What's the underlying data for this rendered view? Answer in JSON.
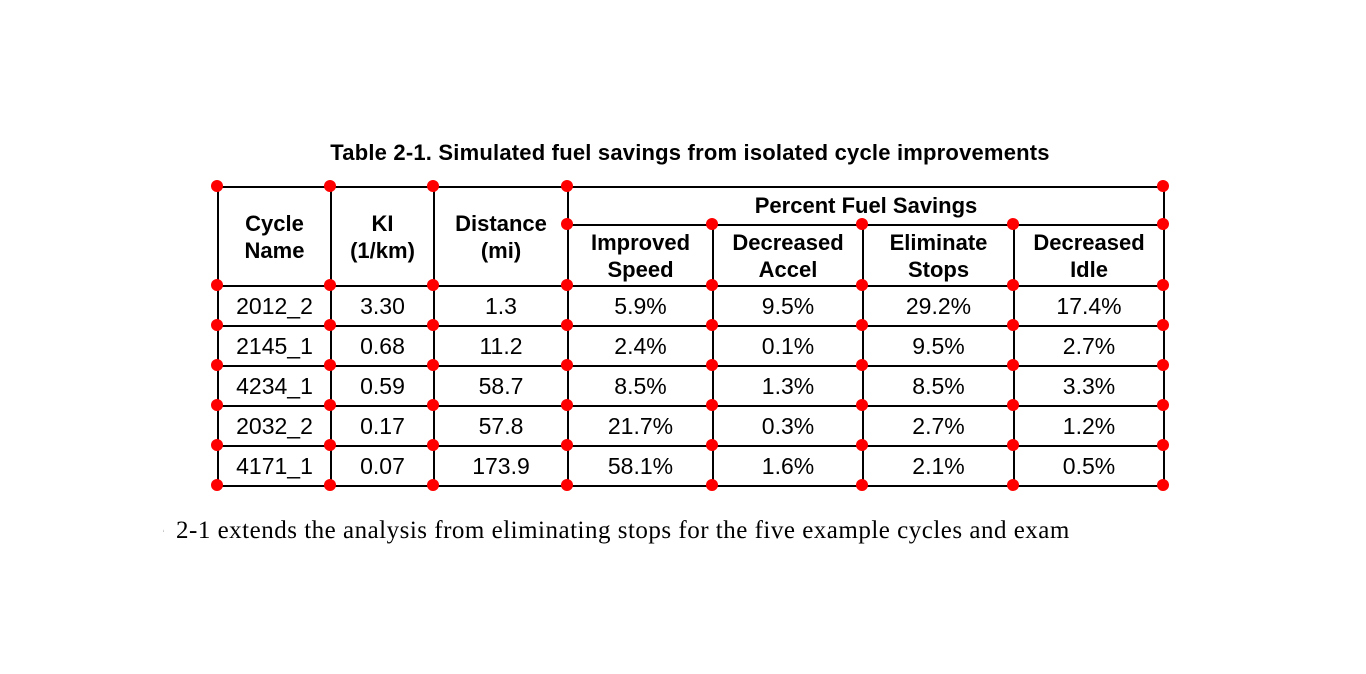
{
  "caption": "Table 2-1. Simulated fuel savings from isolated cycle improvements",
  "table": {
    "col_headers": [
      {
        "line1": "Cycle",
        "line2": "Name"
      },
      {
        "line1": "KI",
        "line2": "(1/km)"
      },
      {
        "line1": "Distance",
        "line2": "(mi)"
      }
    ],
    "group_header": "Percent Fuel Savings",
    "sub_headers": [
      {
        "line1": "Improved",
        "line2": "Speed"
      },
      {
        "line1": "Decreased",
        "line2": "Accel"
      },
      {
        "line1": "Eliminate",
        "line2": "Stops"
      },
      {
        "line1": "Decreased",
        "line2": "Idle"
      }
    ],
    "rows": [
      {
        "cycle": "2012_2",
        "ki": "3.30",
        "distance": "1.3",
        "improved_speed": "5.9%",
        "decreased_accel": "9.5%",
        "eliminate_stops": "29.2%",
        "decreased_idle": "17.4%"
      },
      {
        "cycle": "2145_1",
        "ki": "0.68",
        "distance": "11.2",
        "improved_speed": "2.4%",
        "decreased_accel": "0.1%",
        "eliminate_stops": "9.5%",
        "decreased_idle": "2.7%"
      },
      {
        "cycle": "4234_1",
        "ki": "0.59",
        "distance": "58.7",
        "improved_speed": "8.5%",
        "decreased_accel": "1.3%",
        "eliminate_stops": "8.5%",
        "decreased_idle": "3.3%"
      },
      {
        "cycle": "2032_2",
        "ki": "0.17",
        "distance": "57.8",
        "improved_speed": "21.7%",
        "decreased_accel": "0.3%",
        "eliminate_stops": "2.7%",
        "decreased_idle": "1.2%"
      },
      {
        "cycle": "4171_1",
        "ki": "0.07",
        "distance": "173.9",
        "improved_speed": "58.1%",
        "decreased_accel": "1.6%",
        "eliminate_stops": "2.1%",
        "decreased_idle": "0.5%"
      }
    ]
  },
  "markers": {
    "color": "#ff0000",
    "shape": "circle"
  },
  "body": {
    "fragment": "e",
    "text": "2-1 extends the analysis from eliminating stops for the five example cycles and exam"
  }
}
